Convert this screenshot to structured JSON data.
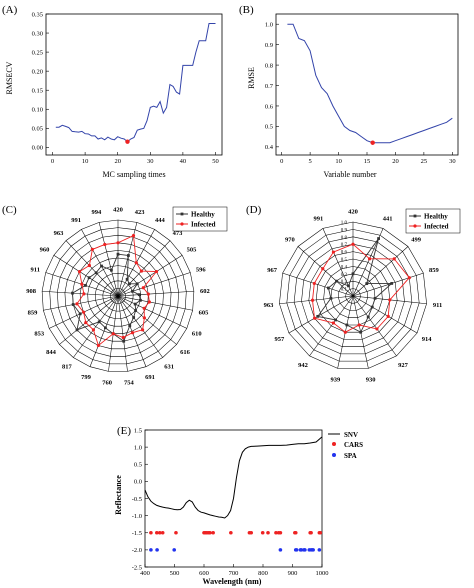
{
  "panels": {
    "a": {
      "label": "(A)"
    },
    "b": {
      "label": "(B)"
    },
    "c": {
      "label": "(C)"
    },
    "d": {
      "label": "(D)"
    },
    "e": {
      "label": "(E)"
    }
  },
  "chart_data": [
    {
      "id": "a",
      "type": "line",
      "title": "",
      "xlabel": "MC sampling times",
      "ylabel": "RMSECV",
      "xlim": [
        -2,
        52
      ],
      "ylim": [
        -0.02,
        0.35
      ],
      "xticks": [
        0,
        10,
        20,
        30,
        40,
        50
      ],
      "yticks": [
        0.0,
        0.05,
        0.1,
        0.15,
        0.2,
        0.25,
        0.3,
        0.35
      ],
      "x": [
        1,
        2,
        3,
        4,
        5,
        6,
        7,
        8,
        9,
        10,
        11,
        12,
        13,
        14,
        15,
        16,
        17,
        18,
        19,
        20,
        21,
        22,
        23,
        24,
        25,
        26,
        27,
        28,
        29,
        30,
        31,
        32,
        33,
        34,
        35,
        36,
        37,
        38,
        39,
        40,
        41,
        42,
        43,
        44,
        45,
        46,
        47,
        48,
        49,
        50
      ],
      "y": [
        0.053,
        0.053,
        0.058,
        0.055,
        0.052,
        0.042,
        0.041,
        0.04,
        0.042,
        0.036,
        0.035,
        0.03,
        0.03,
        0.022,
        0.025,
        0.02,
        0.027,
        0.022,
        0.02,
        0.028,
        0.024,
        0.022,
        0.015,
        0.022,
        0.026,
        0.045,
        0.048,
        0.05,
        0.07,
        0.105,
        0.108,
        0.105,
        0.12,
        0.09,
        0.105,
        0.165,
        0.16,
        0.145,
        0.14,
        0.215,
        0.215,
        0.215,
        0.215,
        0.25,
        0.28,
        0.28,
        0.28,
        0.325,
        0.325,
        0.325
      ],
      "highlight": {
        "x": 23,
        "y": 0.015
      },
      "line_color": "#3344aa",
      "highlight_color": "#ee2222"
    },
    {
      "id": "b",
      "type": "line",
      "title": "",
      "xlabel": "Variable number",
      "ylabel": "RMSE",
      "xlim": [
        -1,
        31
      ],
      "ylim": [
        0.36,
        1.05
      ],
      "xticks": [
        0,
        5,
        10,
        15,
        20,
        25,
        30
      ],
      "yticks": [
        0.4,
        0.5,
        0.6,
        0.7,
        0.8,
        0.9,
        1.0
      ],
      "x": [
        1,
        2,
        3,
        4,
        5,
        6,
        7,
        8,
        9,
        10,
        11,
        12,
        13,
        14,
        15,
        16,
        17,
        18,
        19,
        20,
        21,
        22,
        23,
        24,
        25,
        26,
        27,
        28,
        29,
        30
      ],
      "y": [
        1.0,
        1.0,
        0.93,
        0.92,
        0.87,
        0.75,
        0.69,
        0.66,
        0.6,
        0.55,
        0.5,
        0.48,
        0.47,
        0.45,
        0.43,
        0.42,
        0.42,
        0.42,
        0.42,
        0.43,
        0.44,
        0.45,
        0.46,
        0.47,
        0.48,
        0.49,
        0.5,
        0.51,
        0.52,
        0.54
      ],
      "highlight": {
        "x": 16,
        "y": 0.42
      },
      "line_color": "#3344aa",
      "highlight_color": "#ee2222"
    },
    {
      "id": "c",
      "type": "radar",
      "categories": [
        "420",
        "423",
        "444",
        "473",
        "505",
        "596",
        "602",
        "605",
        "610",
        "616",
        "631",
        "691",
        "754",
        "760",
        "799",
        "817",
        "844",
        "853",
        "859",
        "908",
        "911",
        "960",
        "963",
        "991",
        "994"
      ],
      "rlim": [
        0,
        1
      ],
      "rings": 10,
      "series": [
        {
          "name": "Healthy",
          "color": "#333333",
          "values": [
            0.55,
            0.55,
            0.25,
            0.22,
            0.3,
            0.2,
            0.28,
            0.3,
            0.25,
            0.3,
            0.35,
            0.42,
            0.6,
            0.5,
            0.45,
            0.42,
            0.7,
            0.55,
            0.6,
            0.6,
            0.45,
            0.45,
            0.42,
            0.45,
            0.35
          ]
        },
        {
          "name": "Infected",
          "color": "#ee2222",
          "values": [
            0.7,
            0.82,
            0.5,
            0.45,
            0.6,
            0.35,
            0.4,
            0.42,
            0.38,
            0.45,
            0.55,
            0.52,
            0.55,
            0.5,
            0.7,
            0.55,
            0.55,
            0.5,
            0.55,
            0.45,
            0.5,
            0.6,
            0.55,
            0.7,
            0.7
          ]
        }
      ]
    },
    {
      "id": "d",
      "type": "radar",
      "categories": [
        "420",
        "441",
        "499",
        "859",
        "911",
        "914",
        "927",
        "930",
        "939",
        "942",
        "957",
        "963",
        "967",
        "970",
        "991"
      ],
      "rlim": [
        0,
        1.0
      ],
      "rings": 10,
      "ring_labels": [
        "0.1",
        "0.2",
        "0.3",
        "0.4",
        "0.5",
        "0.6",
        "0.7",
        "0.8",
        "0.9",
        "1.0"
      ],
      "series": [
        {
          "name": "Healthy",
          "color": "#333333",
          "values": [
            0.3,
            0.85,
            0.25,
            0.55,
            0.3,
            0.3,
            0.35,
            0.5,
            0.4,
            0.4,
            0.55,
            0.3,
            0.35,
            0.3,
            0.15
          ]
        },
        {
          "name": "Infected",
          "color": "#ee2222",
          "values": [
            0.7,
            0.55,
            0.75,
            0.8,
            0.5,
            0.55,
            0.55,
            0.4,
            0.5,
            0.45,
            0.6,
            0.55,
            0.55,
            0.55,
            0.65
          ]
        }
      ]
    },
    {
      "id": "e",
      "type": "line",
      "title": "",
      "xlabel": "Wavelength (nm)",
      "ylabel": "Reflectance",
      "xlim": [
        400,
        1000
      ],
      "ylim": [
        -2.5,
        1.5
      ],
      "xticks": [
        400,
        500,
        600,
        700,
        800,
        900,
        1000
      ],
      "yticks": [
        -2.5,
        -2.0,
        -1.5,
        -1.0,
        -0.5,
        0.0,
        0.5,
        1.0,
        1.5
      ],
      "series": [
        {
          "name": "SNV",
          "color": "#000000",
          "x": [
            400,
            410,
            420,
            430,
            440,
            450,
            460,
            470,
            480,
            490,
            500,
            510,
            520,
            530,
            540,
            550,
            560,
            570,
            580,
            590,
            600,
            610,
            620,
            630,
            640,
            650,
            660,
            670,
            680,
            690,
            700,
            710,
            720,
            730,
            740,
            750,
            760,
            780,
            800,
            820,
            840,
            860,
            880,
            900,
            920,
            940,
            960,
            980,
            1000
          ],
          "y": [
            -0.25,
            -0.45,
            -0.58,
            -0.65,
            -0.7,
            -0.73,
            -0.75,
            -0.77,
            -0.78,
            -0.8,
            -0.82,
            -0.83,
            -0.82,
            -0.75,
            -0.62,
            -0.55,
            -0.6,
            -0.75,
            -0.85,
            -0.9,
            -0.92,
            -0.95,
            -0.98,
            -1.0,
            -1.02,
            -1.04,
            -1.05,
            -1.07,
            -1.0,
            -0.85,
            -0.5,
            0.1,
            0.6,
            0.85,
            0.95,
            1.0,
            1.02,
            1.03,
            1.04,
            1.05,
            1.05,
            1.05,
            1.06,
            1.08,
            1.1,
            1.1,
            1.12,
            1.15,
            1.3
          ]
        }
      ],
      "markers": [
        {
          "name": "CARS",
          "color": "#ee2222",
          "y": -1.5,
          "x": [
            420,
            440,
            450,
            460,
            505,
            600,
            605,
            610,
            616,
            620,
            631,
            691,
            754,
            760,
            799,
            817,
            844,
            853,
            859,
            908,
            911,
            960,
            963,
            991,
            994
          ]
        },
        {
          "name": "SPA",
          "color": "#2233ee",
          "y": -2.0,
          "x": [
            420,
            441,
            499,
            859,
            911,
            914,
            927,
            930,
            939,
            942,
            957,
            963,
            967,
            970,
            991
          ]
        }
      ]
    }
  ]
}
